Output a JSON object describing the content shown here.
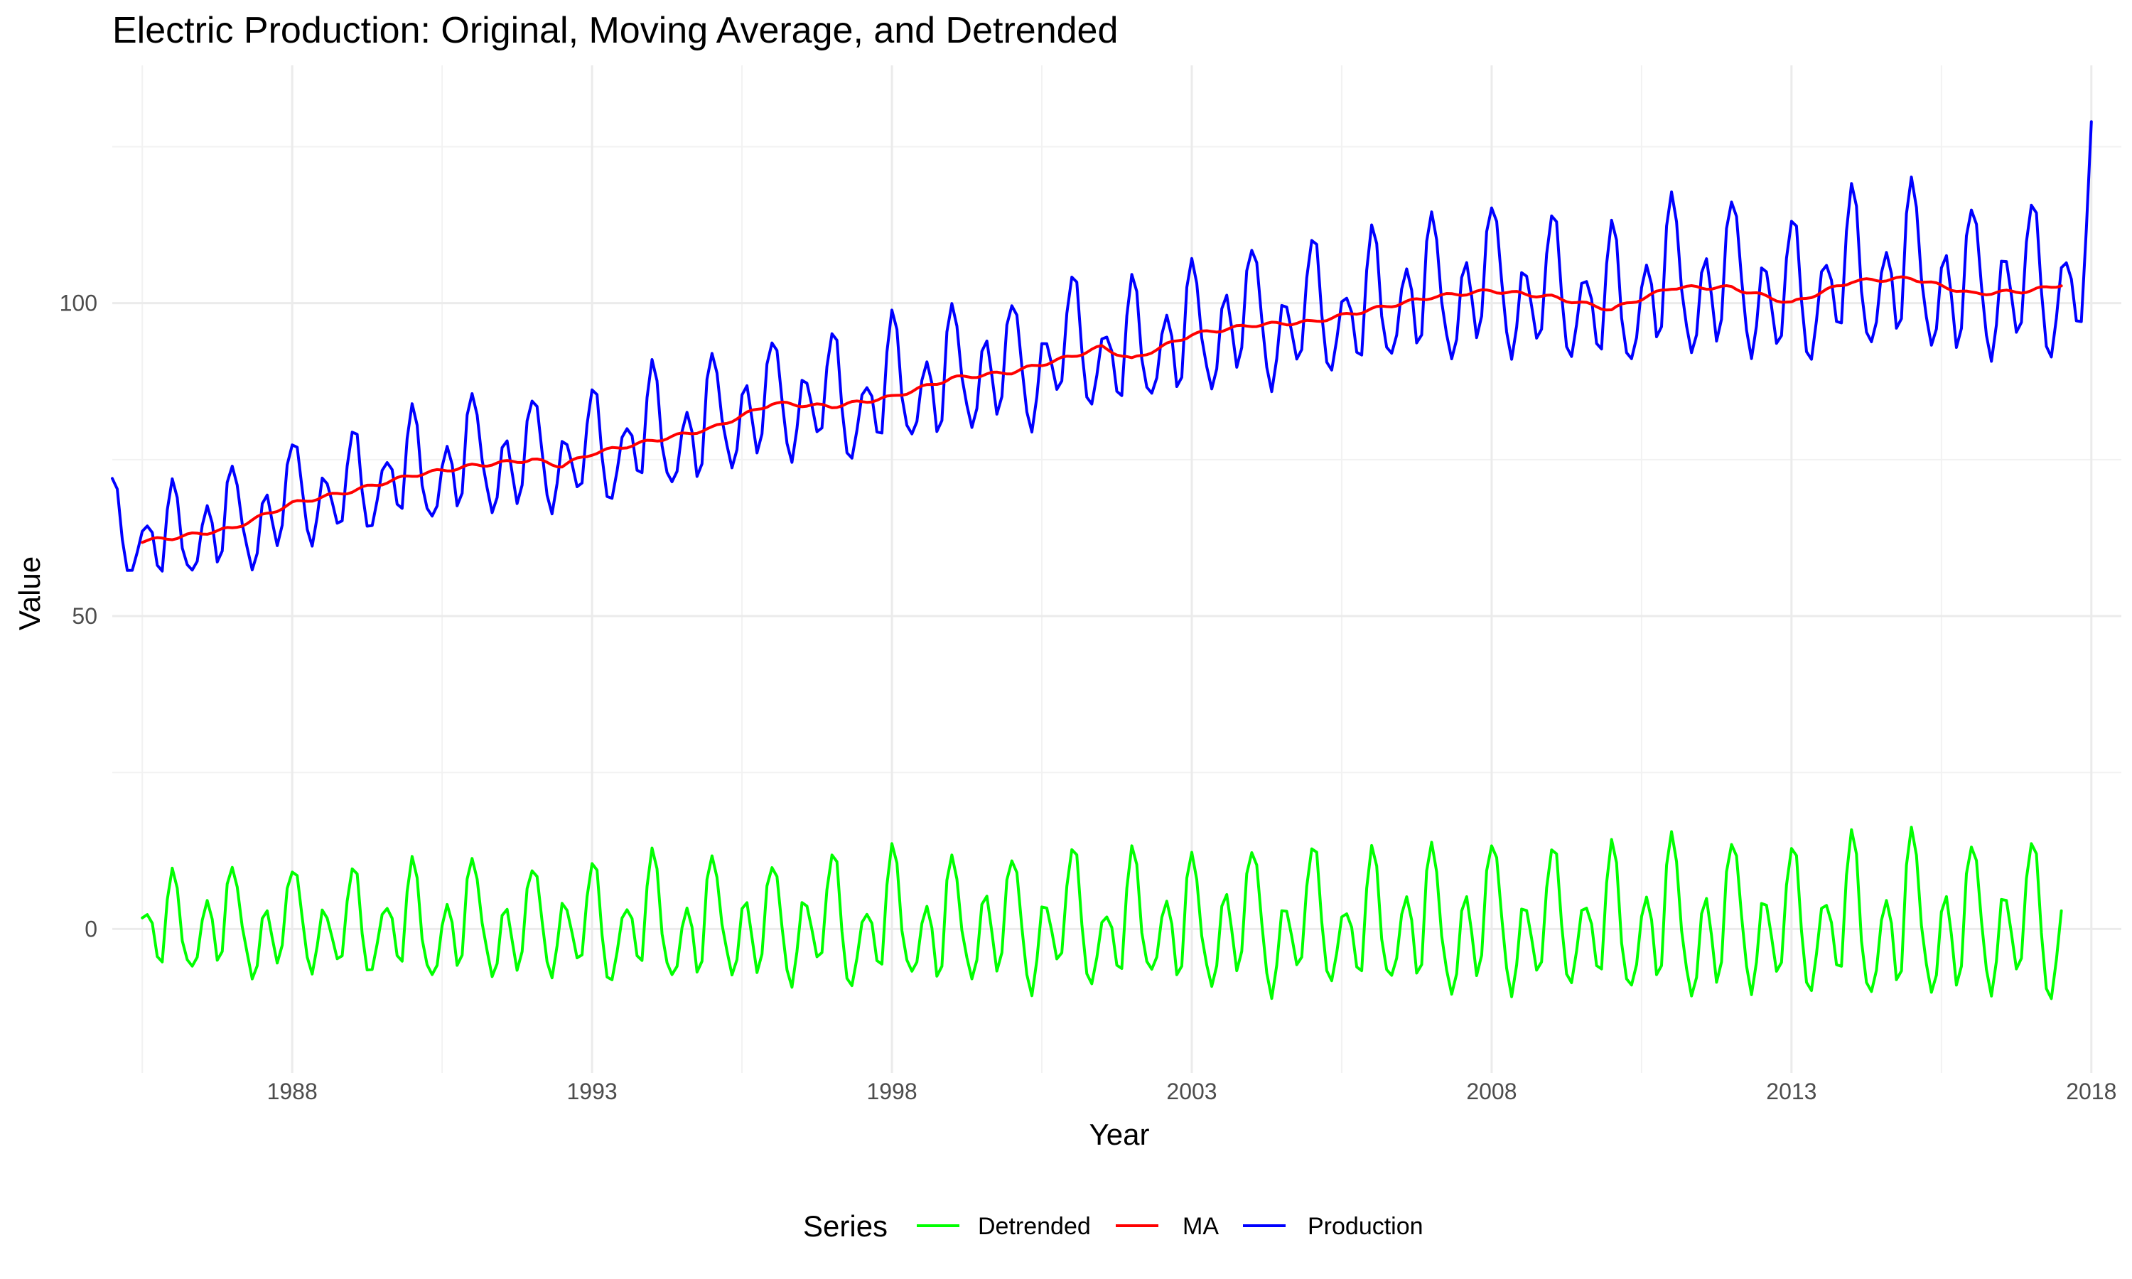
{
  "chart_data": {
    "type": "line",
    "title": "Electric Production: Original, Moving Average, and Detrended",
    "xlabel": "Year",
    "ylabel": "Value",
    "xlim": [
      1985.0,
      2018.5
    ],
    "ylim": [
      -23,
      138
    ],
    "x_ticks": [
      1988,
      1993,
      1998,
      2003,
      2008,
      2013,
      2018
    ],
    "y_ticks": [
      0,
      50,
      100
    ],
    "grid": true,
    "legend": {
      "title": "Series",
      "position": "bottom",
      "entries": [
        {
          "name": "Detrended",
          "color": "#00ff00"
        },
        {
          "name": "MA",
          "color": "#ff0000"
        },
        {
          "name": "Production",
          "color": "#0000ff"
        }
      ]
    },
    "series_start_x": 1985.0,
    "series_step_x": 0.08333333,
    "series": [
      {
        "name": "Production",
        "color": "#0000ff",
        "seasonal": [
          10,
          8,
          0,
          -5,
          -7,
          -4,
          2,
          3,
          0,
          -5,
          -4,
          6
        ],
        "anchors": [
          [
            1985.0,
            62
          ],
          [
            1985.5,
            62
          ],
          [
            1986.0,
            62.5
          ],
          [
            1987.0,
            64
          ],
          [
            1988.0,
            68
          ],
          [
            1989.0,
            70
          ],
          [
            1990.0,
            72.5
          ],
          [
            1991.0,
            74
          ],
          [
            1992.0,
            75
          ],
          [
            1992.5,
            74
          ],
          [
            1993.0,
            76
          ],
          [
            1994.0,
            78
          ],
          [
            1995.0,
            80
          ],
          [
            1996.0,
            84
          ],
          [
            1997.0,
            83.5
          ],
          [
            1998.0,
            85
          ],
          [
            1999.0,
            88
          ],
          [
            2000.0,
            89
          ],
          [
            2001.0,
            91.5
          ],
          [
            2001.5,
            93
          ],
          [
            2002.0,
            91
          ],
          [
            2003.0,
            95
          ],
          [
            2004.0,
            96.5
          ],
          [
            2005.0,
            97
          ],
          [
            2006.0,
            99
          ],
          [
            2007.0,
            101
          ],
          [
            2008.0,
            102
          ],
          [
            2009.0,
            101
          ],
          [
            2010.0,
            99
          ],
          [
            2011.0,
            102.5
          ],
          [
            2012.0,
            102.5
          ],
          [
            2013.0,
            100
          ],
          [
            2014.0,
            103.5
          ],
          [
            2015.0,
            104
          ],
          [
            2016.0,
            101.5
          ],
          [
            2017.0,
            102
          ],
          [
            2017.5,
            103
          ],
          [
            2018.0,
            103
          ]
        ],
        "amplitude": [
          [
            1985.0,
            0.85
          ],
          [
            1988.0,
            1.0
          ],
          [
            1993.0,
            1.1
          ],
          [
            1998.0,
            1.2
          ],
          [
            2003.0,
            1.25
          ],
          [
            2008.0,
            1.35
          ],
          [
            2013.0,
            1.45
          ],
          [
            2018.0,
            1.5
          ]
        ],
        "x_end": 2018.0,
        "end_value": 129
      },
      {
        "name": "MA",
        "color": "#ff0000",
        "x_start": 1985.5,
        "x_end": 2017.5
      },
      {
        "name": "Detrended",
        "color": "#00ff00",
        "x_start": 1985.5,
        "x_end": 2017.5
      }
    ]
  }
}
